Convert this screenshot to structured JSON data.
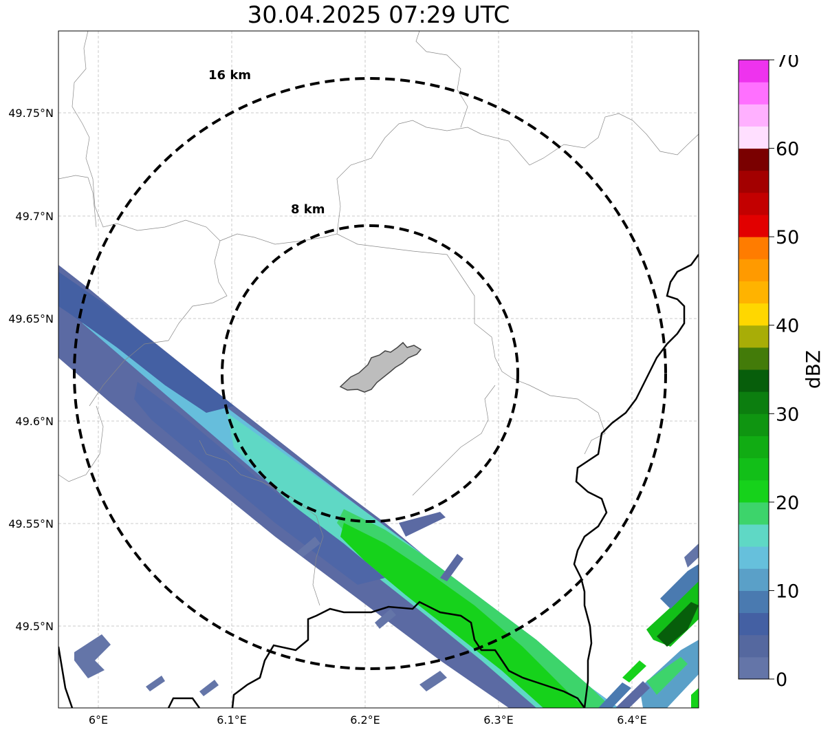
{
  "title": "30.04.2025 07:29 UTC",
  "map": {
    "lat_ticks": [
      "49.75°N",
      "49.7°N",
      "49.65°N",
      "49.6°N",
      "49.55°N",
      "49.5°N"
    ],
    "lon_ticks": [
      "6°E",
      "6.1°E",
      "6.2°E",
      "6.3°E",
      "6.4°E"
    ],
    "range_rings": [
      {
        "label": "16 km",
        "radius_km": 16
      },
      {
        "label": "8 km",
        "radius_km": 8
      }
    ],
    "gridlines": "dashed",
    "boundary_color": "#000000",
    "admin_boundary_color": "#888888",
    "city_fill": "#bdbdbd"
  },
  "colorbar": {
    "label": "dBZ",
    "ticks": [
      "0",
      "10",
      "20",
      "30",
      "40",
      "50",
      "60",
      "70"
    ],
    "min": 0,
    "max": 70,
    "step": 2.5,
    "colors": [
      "#6475a8",
      "#55689f",
      "#4460a3",
      "#4a7ab0",
      "#5aa0c8",
      "#66c0dc",
      "#5fd8c5",
      "#3dd46b",
      "#16d21b",
      "#12bf18",
      "#11ac13",
      "#0f9511",
      "#0c7e0f",
      "#075e0b",
      "#437b09",
      "#a8ad07",
      "#ffd700",
      "#ffb300",
      "#ff9a00",
      "#ff7c00",
      "#e20000",
      "#c30000",
      "#a30000",
      "#7a0000",
      "#ffdfff",
      "#ffb0ff",
      "#ff70ff",
      "#ee33ee"
    ]
  }
}
